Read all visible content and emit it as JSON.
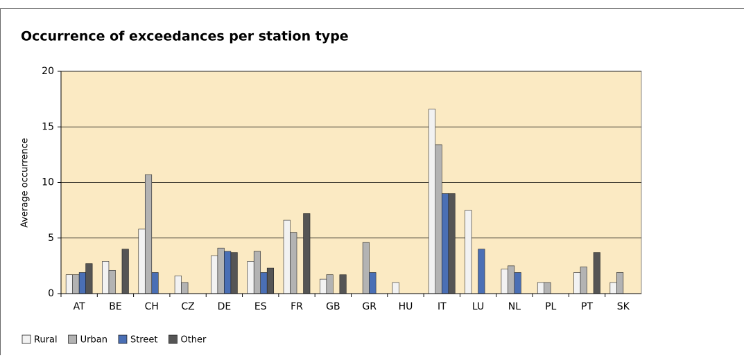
{
  "chart_data": {
    "type": "bar",
    "title": "Occurrence of exceedances per station type",
    "y_label": "Average occurrence",
    "categories": [
      "AT",
      "BE",
      "CH",
      "CZ",
      "DE",
      "ES",
      "FR",
      "GB",
      "GR",
      "HU",
      "IT",
      "LU",
      "NL",
      "PL",
      "PT",
      "SK"
    ],
    "series": [
      {
        "name": "Rural",
        "color": "#f2f2f2",
        "values": [
          1.7,
          2.9,
          5.8,
          1.6,
          3.4,
          2.9,
          6.6,
          1.3,
          0,
          1.0,
          16.6,
          7.5,
          2.2,
          1.0,
          1.9,
          1.0
        ]
      },
      {
        "name": "Urban",
        "color": "#b3b3b3",
        "values": [
          1.7,
          2.1,
          10.7,
          1.0,
          4.1,
          3.8,
          5.5,
          1.7,
          4.6,
          0,
          13.4,
          0,
          2.5,
          1.0,
          2.4,
          1.9
        ]
      },
      {
        "name": "Street",
        "color": "#4a6fb5",
        "values": [
          1.9,
          0,
          1.9,
          0,
          3.8,
          1.9,
          0,
          0,
          1.9,
          0,
          9.0,
          4.0,
          1.9,
          0,
          0,
          0
        ]
      },
      {
        "name": "Other",
        "color": "#555555",
        "values": [
          2.7,
          4.0,
          0,
          0,
          3.7,
          2.3,
          7.2,
          1.7,
          0,
          0,
          9.0,
          0,
          0,
          0,
          3.7,
          0
        ]
      }
    ],
    "ylim": [
      0,
      20
    ],
    "yticks": [
      0,
      5,
      10,
      15,
      20
    ],
    "grid": true,
    "plot_background": "#fbeac3",
    "legend": "bottom-left"
  }
}
